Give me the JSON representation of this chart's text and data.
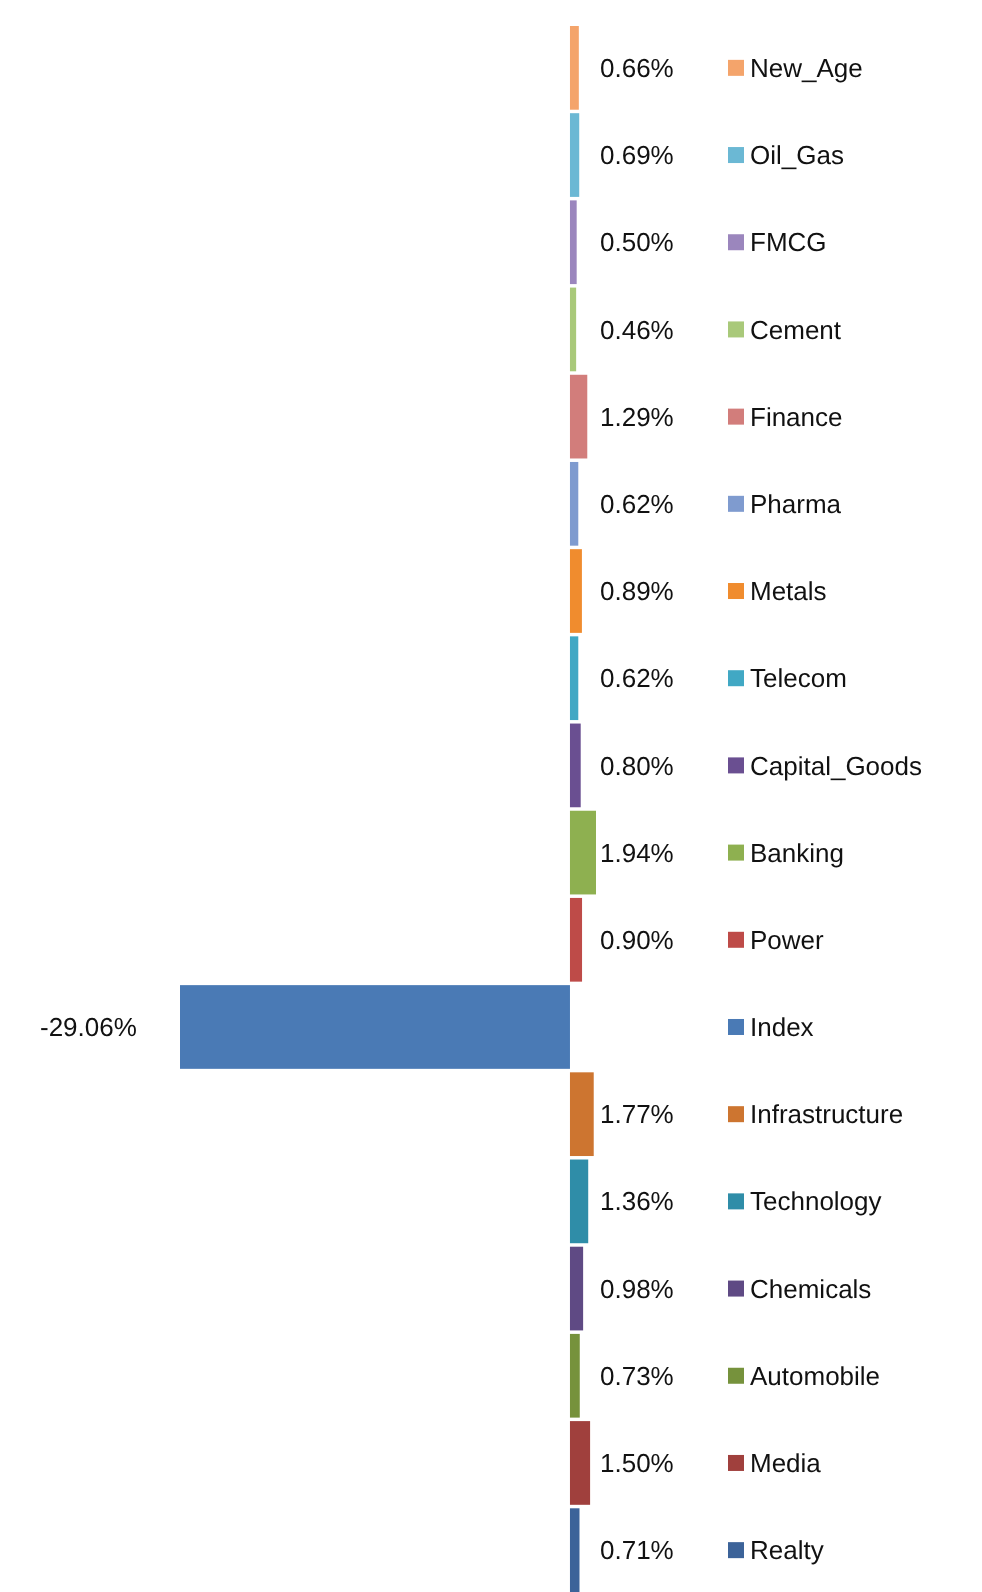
{
  "chart_data": {
    "type": "bar",
    "orientation": "horizontal",
    "categories": [
      "New_Age",
      "Oil_Gas",
      "FMCG",
      "Cement",
      "Finance",
      "Pharma",
      "Metals",
      "Telecom",
      "Capital_Goods",
      "Banking",
      "Power",
      "Index",
      "Infrastructure",
      "Technology",
      "Chemicals",
      "Automobile",
      "Media",
      "Realty"
    ],
    "values": [
      0.66,
      0.69,
      0.5,
      0.46,
      1.29,
      0.62,
      0.89,
      0.62,
      0.8,
      1.94,
      0.9,
      -29.06,
      1.77,
      1.36,
      0.98,
      0.73,
      1.5,
      0.71
    ],
    "value_labels": [
      "0.66%",
      "0.69%",
      "0.50%",
      "0.46%",
      "1.29%",
      "0.62%",
      "0.89%",
      "0.62%",
      "0.80%",
      "1.94%",
      "0.90%",
      "-29.06%",
      "1.77%",
      "1.36%",
      "0.98%",
      "0.73%",
      "1.50%",
      "0.71%"
    ],
    "colors": [
      "#f4a46b",
      "#6bb8d4",
      "#9b86bd",
      "#a9c97a",
      "#d27d7b",
      "#7f9bcf",
      "#f08c2e",
      "#41a8c4",
      "#6a4f91",
      "#8eb050",
      "#be4b48",
      "#4a7ab5",
      "#cd7530",
      "#2f8da8",
      "#5f4a84",
      "#76923c",
      "#a0403d",
      "#3c6399"
    ]
  }
}
